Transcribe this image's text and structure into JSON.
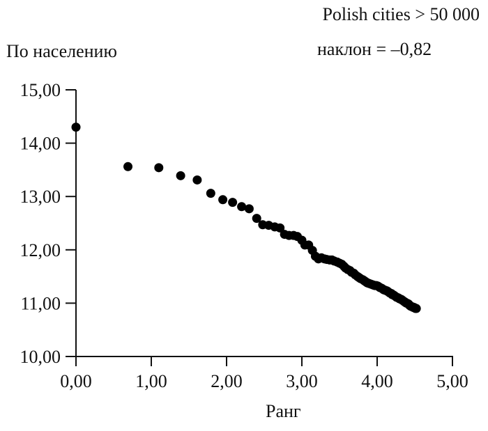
{
  "chart_data": {
    "type": "scatter",
    "title": "Polish cities > 50 000",
    "subtitle": "наклон = –0,82",
    "xlabel": "Ранг",
    "ylabel": "По населению",
    "xlim": [
      0,
      5
    ],
    "ylim": [
      10,
      15
    ],
    "grid": false,
    "legend": null,
    "x_ticks": [
      "0,00",
      "1,00",
      "2,00",
      "3,00",
      "4,00",
      "5,00"
    ],
    "y_ticks": [
      "10,00",
      "11,00",
      "12,00",
      "13,00",
      "14,00",
      "15,00"
    ],
    "x_tick_values": [
      0,
      1,
      2,
      3,
      4,
      5
    ],
    "y_tick_values": [
      10,
      11,
      12,
      13,
      14,
      15
    ],
    "marker_color": "#000000",
    "series": [
      {
        "name": "Polish cities",
        "points": [
          [
            0.0,
            14.3
          ],
          [
            0.69,
            13.56
          ],
          [
            1.1,
            13.54
          ],
          [
            1.39,
            13.39
          ],
          [
            1.61,
            13.31
          ],
          [
            1.79,
            13.06
          ],
          [
            1.95,
            12.94
          ],
          [
            2.08,
            12.89
          ],
          [
            2.2,
            12.81
          ],
          [
            2.3,
            12.77
          ],
          [
            2.4,
            12.59
          ],
          [
            2.48,
            12.47
          ],
          [
            2.56,
            12.46
          ],
          [
            2.64,
            12.43
          ],
          [
            2.71,
            12.41
          ],
          [
            2.77,
            12.29
          ],
          [
            2.83,
            12.27
          ],
          [
            2.89,
            12.27
          ],
          [
            2.94,
            12.25
          ],
          [
            3.0,
            12.18
          ],
          [
            3.04,
            12.09
          ],
          [
            3.09,
            12.09
          ],
          [
            3.14,
            11.99
          ],
          [
            3.18,
            11.88
          ],
          [
            3.22,
            11.83
          ],
          [
            3.26,
            11.85
          ],
          [
            3.3,
            11.83
          ],
          [
            3.33,
            11.82
          ],
          [
            3.37,
            11.81
          ],
          [
            3.4,
            11.81
          ],
          [
            3.43,
            11.79
          ],
          [
            3.47,
            11.77
          ],
          [
            3.5,
            11.75
          ],
          [
            3.53,
            11.73
          ],
          [
            3.56,
            11.69
          ],
          [
            3.58,
            11.66
          ],
          [
            3.61,
            11.63
          ],
          [
            3.64,
            11.61
          ],
          [
            3.66,
            11.58
          ],
          [
            3.69,
            11.56
          ],
          [
            3.71,
            11.53
          ],
          [
            3.74,
            11.5
          ],
          [
            3.76,
            11.48
          ],
          [
            3.78,
            11.46
          ],
          [
            3.81,
            11.44
          ],
          [
            3.83,
            11.42
          ],
          [
            3.85,
            11.4
          ],
          [
            3.87,
            11.38
          ],
          [
            3.89,
            11.37
          ],
          [
            3.91,
            11.36
          ],
          [
            3.93,
            11.35
          ],
          [
            3.95,
            11.34
          ],
          [
            3.97,
            11.33
          ],
          [
            3.99,
            11.33
          ],
          [
            4.01,
            11.32
          ],
          [
            4.03,
            11.3
          ],
          [
            4.04,
            11.29
          ],
          [
            4.06,
            11.28
          ],
          [
            4.08,
            11.26
          ],
          [
            4.09,
            11.25
          ],
          [
            4.11,
            11.24
          ],
          [
            4.13,
            11.23
          ],
          [
            4.14,
            11.22
          ],
          [
            4.16,
            11.2
          ],
          [
            4.17,
            11.19
          ],
          [
            4.19,
            11.18
          ],
          [
            4.2,
            11.16
          ],
          [
            4.22,
            11.15
          ],
          [
            4.23,
            11.14
          ],
          [
            4.25,
            11.12
          ],
          [
            4.26,
            11.11
          ],
          [
            4.28,
            11.1
          ],
          [
            4.29,
            11.09
          ],
          [
            4.3,
            11.08
          ],
          [
            4.32,
            11.07
          ],
          [
            4.33,
            11.06
          ],
          [
            4.34,
            11.05
          ],
          [
            4.36,
            11.03
          ],
          [
            4.37,
            11.02
          ],
          [
            4.38,
            11.01
          ],
          [
            4.39,
            11.0
          ],
          [
            4.41,
            10.99
          ],
          [
            4.42,
            10.98
          ],
          [
            4.43,
            10.96
          ],
          [
            4.44,
            10.95
          ],
          [
            4.45,
            10.94
          ],
          [
            4.47,
            10.93
          ],
          [
            4.48,
            10.92
          ],
          [
            4.49,
            10.92
          ],
          [
            4.5,
            10.91
          ],
          [
            4.51,
            10.9
          ],
          [
            4.52,
            10.9
          ]
        ]
      }
    ]
  }
}
